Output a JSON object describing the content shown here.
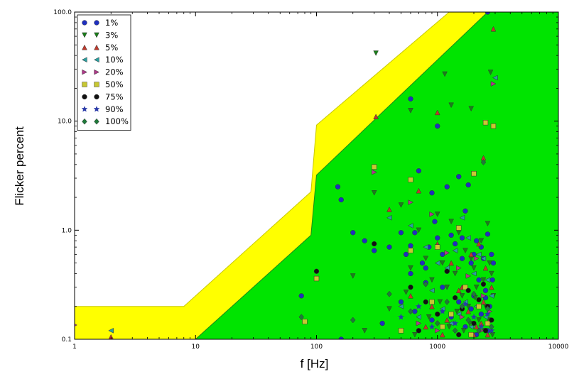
{
  "chart_data": {
    "type": "scatter",
    "title": "",
    "xlabel": "f [Hz]",
    "ylabel": "Flicker percent",
    "xscale": "log",
    "yscale": "log",
    "xlim": [
      1,
      10000
    ],
    "ylim": [
      0.1,
      100
    ],
    "x_ticks": [
      1,
      10,
      100,
      1000,
      10000
    ],
    "x_tick_labels": [
      "1",
      "10",
      "100",
      "1000",
      "10000"
    ],
    "y_ticks": [
      0.1,
      1,
      10,
      100
    ],
    "y_tick_labels": [
      "0.1",
      "1.0",
      "10.0",
      "100.0"
    ],
    "grid": false,
    "legend_position": "top-left",
    "regions": [
      {
        "name": "low-risk",
        "color": "#00e400",
        "boundary": [
          [
            10,
            0.1
          ],
          [
            90,
            0.9
          ],
          [
            100,
            3.2
          ],
          [
            2600,
            100
          ],
          [
            10000,
            100
          ],
          [
            10000,
            0.1
          ]
        ]
      },
      {
        "name": "low-risk-margin",
        "color": "#ffff00",
        "boundary": [
          [
            1,
            0.2
          ],
          [
            8,
            0.2
          ],
          [
            90,
            2.25
          ],
          [
            100,
            9.2
          ],
          [
            1250,
            100
          ],
          [
            10000,
            100
          ],
          [
            10000,
            0.1
          ],
          [
            1,
            0.1
          ]
        ]
      }
    ],
    "series": [
      {
        "name": "1%",
        "marker": "circle",
        "color": "#1f2fbf",
        "points": [
          [
            1000,
            9
          ],
          [
            600,
            16
          ],
          [
            2600,
            100
          ],
          [
            150,
            2.5
          ],
          [
            160,
            1.9
          ],
          [
            200,
            0.95
          ],
          [
            250,
            0.8
          ],
          [
            300,
            0.65
          ],
          [
            400,
            0.7
          ],
          [
            500,
            0.95
          ],
          [
            550,
            0.6
          ],
          [
            600,
            0.4
          ],
          [
            650,
            0.95
          ],
          [
            700,
            3.5
          ],
          [
            750,
            0.5
          ],
          [
            800,
            0.45
          ],
          [
            850,
            0.7
          ],
          [
            900,
            2.2
          ],
          [
            950,
            1.2
          ],
          [
            1000,
            0.85
          ],
          [
            1100,
            0.6
          ],
          [
            1200,
            2.5
          ],
          [
            1300,
            0.9
          ],
          [
            1400,
            0.75
          ],
          [
            1500,
            3.1
          ],
          [
            1600,
            0.55
          ],
          [
            1700,
            1.5
          ],
          [
            1800,
            2.6
          ],
          [
            1900,
            0.5
          ],
          [
            2000,
            0.25
          ],
          [
            2100,
            0.8
          ],
          [
            2200,
            0.35
          ],
          [
            2300,
            0.7
          ],
          [
            2400,
            0.55
          ],
          [
            2500,
            0.28
          ],
          [
            2600,
            0.92
          ],
          [
            2700,
            0.2
          ],
          [
            2800,
            0.6
          ],
          [
            2900,
            0.5
          ],
          [
            75,
            0.25
          ],
          [
            160,
            0.1
          ],
          [
            350,
            0.14
          ],
          [
            500,
            0.22
          ],
          [
            650,
            0.18
          ],
          [
            700,
            0.12
          ],
          [
            900,
            0.15
          ],
          [
            1100,
            0.3
          ],
          [
            1300,
            0.16
          ],
          [
            1500,
            0.22
          ],
          [
            1700,
            0.13
          ],
          [
            1900,
            0.19
          ],
          [
            2100,
            0.11
          ],
          [
            2300,
            0.17
          ],
          [
            2500,
            0.24
          ],
          [
            600,
            0.72
          ],
          [
            800,
            0.33
          ],
          [
            1200,
            0.42
          ],
          [
            1600,
            0.85
          ],
          [
            2000,
            0.6
          ],
          [
            2600,
            0.12
          ],
          [
            2850,
            0.35
          ]
        ]
      },
      {
        "name": "3%",
        "marker": "triangle-down",
        "color": "#1a7f1a",
        "points": [
          [
            310,
            42
          ],
          [
            1150,
            27
          ],
          [
            2750,
            28
          ],
          [
            600,
            12.5
          ],
          [
            1900,
            13
          ],
          [
            1300,
            14
          ],
          [
            200,
            0.38
          ],
          [
            300,
            2.2
          ],
          [
            500,
            1.7
          ],
          [
            600,
            0.45
          ],
          [
            700,
            1.0
          ],
          [
            800,
            0.55
          ],
          [
            900,
            0.35
          ],
          [
            1000,
            1.4
          ],
          [
            1100,
            0.5
          ],
          [
            1200,
            0.3
          ],
          [
            1300,
            1.2
          ],
          [
            1400,
            0.4
          ],
          [
            1500,
            0.95
          ],
          [
            1600,
            0.25
          ],
          [
            1700,
            0.65
          ],
          [
            1800,
            0.2
          ],
          [
            1900,
            0.55
          ],
          [
            2000,
            0.45
          ],
          [
            2100,
            0.3
          ],
          [
            2200,
            0.15
          ],
          [
            2300,
            0.8
          ],
          [
            2400,
            0.35
          ],
          [
            2500,
            0.2
          ],
          [
            2600,
            1.15
          ],
          [
            2700,
            0.5
          ],
          [
            2800,
            0.4
          ],
          [
            2900,
            0.25
          ],
          [
            250,
            0.12
          ],
          [
            400,
            0.19
          ],
          [
            550,
            0.27
          ],
          [
            650,
            0.11
          ],
          [
            850,
            0.16
          ],
          [
            1050,
            0.22
          ],
          [
            1250,
            0.13
          ],
          [
            1450,
            0.18
          ],
          [
            1650,
            0.12
          ],
          [
            1850,
            0.14
          ],
          [
            2050,
            0.24
          ],
          [
            2450,
            0.12
          ],
          [
            2650,
            0.15
          ],
          [
            2850,
            0.11
          ]
        ]
      },
      {
        "name": "5%",
        "marker": "triangle-up",
        "color": "#c0392b",
        "points": [
          [
            2,
            0.105
          ],
          [
            310,
            11
          ],
          [
            1000,
            12
          ],
          [
            2900,
            70
          ],
          [
            2400,
            4.6
          ],
          [
            400,
            1.55
          ],
          [
            700,
            2.3
          ],
          [
            1000,
            0.75
          ],
          [
            1300,
            0.5
          ],
          [
            1600,
            0.3
          ],
          [
            1900,
            0.6
          ],
          [
            2200,
            0.75
          ],
          [
            2500,
            0.45
          ],
          [
            2800,
            0.3
          ],
          [
            600,
            0.25
          ],
          [
            900,
            0.2
          ],
          [
            1200,
            0.15
          ],
          [
            1500,
            0.28
          ],
          [
            1800,
            0.18
          ],
          [
            2100,
            0.13
          ],
          [
            2400,
            0.22
          ],
          [
            2700,
            0.15
          ],
          [
            500,
            0.12
          ],
          [
            800,
            0.13
          ],
          [
            1100,
            0.11
          ],
          [
            2000,
            0.11
          ],
          [
            2300,
            0.14
          ],
          [
            2600,
            0.11
          ]
        ]
      },
      {
        "name": "10%",
        "marker": "triangle-left",
        "color": "#2aa0a0",
        "points": [
          [
            2,
            0.12
          ],
          [
            3000,
            25
          ],
          [
            400,
            1.3
          ],
          [
            600,
            1.1
          ],
          [
            800,
            0.7
          ],
          [
            1000,
            0.5
          ],
          [
            1200,
            0.45
          ],
          [
            1400,
            0.65
          ],
          [
            1600,
            1.3
          ],
          [
            1800,
            0.85
          ],
          [
            2000,
            0.4
          ],
          [
            2200,
            0.6
          ],
          [
            2400,
            0.55
          ],
          [
            2600,
            0.35
          ],
          [
            2800,
            0.25
          ],
          [
            500,
            0.2
          ],
          [
            700,
            0.16
          ],
          [
            900,
            0.28
          ],
          [
            1100,
            0.19
          ],
          [
            1300,
            0.14
          ],
          [
            1500,
            0.17
          ],
          [
            1700,
            0.22
          ],
          [
            1900,
            0.13
          ],
          [
            2100,
            0.2
          ],
          [
            2500,
            0.16
          ]
        ]
      },
      {
        "name": "20%",
        "marker": "triangle-right",
        "color": "#b03a8a",
        "points": [
          [
            1,
            0.135
          ],
          [
            2900,
            22
          ],
          [
            300,
            3.4
          ],
          [
            600,
            1.8
          ],
          [
            900,
            1.4
          ],
          [
            1200,
            0.62
          ],
          [
            1500,
            0.45
          ],
          [
            1800,
            0.38
          ],
          [
            2100,
            0.55
          ],
          [
            2400,
            0.25
          ],
          [
            2700,
            0.18
          ],
          [
            700,
            0.14
          ],
          [
            1000,
            0.12
          ],
          [
            1600,
            0.16
          ],
          [
            2300,
            0.12
          ]
        ]
      },
      {
        "name": "50%",
        "marker": "square",
        "color": "#c8c832",
        "points": [
          [
            80,
            0.145
          ],
          [
            100,
            0.36
          ],
          [
            300,
            3.8
          ],
          [
            600,
            2.9
          ],
          [
            1000,
            0.7
          ],
          [
            1500,
            1.05
          ],
          [
            2000,
            3.3
          ],
          [
            2500,
            9.7
          ],
          [
            2900,
            9
          ],
          [
            600,
            0.65
          ],
          [
            900,
            0.22
          ],
          [
            1300,
            0.17
          ],
          [
            1700,
            0.3
          ],
          [
            2200,
            0.2
          ],
          [
            2600,
            0.14
          ],
          [
            500,
            0.12
          ],
          [
            1100,
            0.13
          ],
          [
            1900,
            0.11
          ]
        ]
      },
      {
        "name": "75%",
        "marker": "circle",
        "color": "#111111",
        "points": [
          [
            100,
            0.42
          ],
          [
            300,
            0.75
          ],
          [
            600,
            0.3
          ],
          [
            800,
            0.22
          ],
          [
            1000,
            0.17
          ],
          [
            1200,
            0.42
          ],
          [
            1400,
            0.24
          ],
          [
            1600,
            0.19
          ],
          [
            1800,
            0.28
          ],
          [
            2000,
            0.14
          ],
          [
            2200,
            0.23
          ],
          [
            2400,
            0.32
          ],
          [
            2600,
            0.2
          ],
          [
            2800,
            0.15
          ],
          [
            700,
            0.12
          ],
          [
            1500,
            0.11
          ],
          [
            2500,
            0.12
          ]
        ]
      },
      {
        "name": "90%",
        "marker": "star",
        "color": "#2a3aa8",
        "points": [
          [
            500,
            0.16
          ],
          [
            700,
            0.2
          ],
          [
            900,
            0.13
          ],
          [
            1100,
            0.18
          ],
          [
            1400,
            0.14
          ],
          [
            1700,
            0.21
          ],
          [
            2000,
            0.16
          ],
          [
            2300,
            0.13
          ],
          [
            2600,
            0.17
          ],
          [
            2800,
            0.12
          ]
        ]
      },
      {
        "name": "100%",
        "marker": "diamond",
        "color": "#1f7a3a",
        "points": [
          [
            75,
            0.16
          ],
          [
            200,
            0.15
          ],
          [
            400,
            0.26
          ],
          [
            600,
            0.18
          ],
          [
            800,
            0.32
          ],
          [
            1000,
            0.14
          ],
          [
            1200,
            0.22
          ],
          [
            1400,
            0.12
          ],
          [
            1600,
            0.2
          ],
          [
            1800,
            0.15
          ],
          [
            2000,
            0.26
          ],
          [
            2200,
            0.12
          ],
          [
            2400,
            4.2
          ],
          [
            2600,
            0.19
          ],
          [
            2800,
            0.13
          ]
        ]
      }
    ]
  }
}
